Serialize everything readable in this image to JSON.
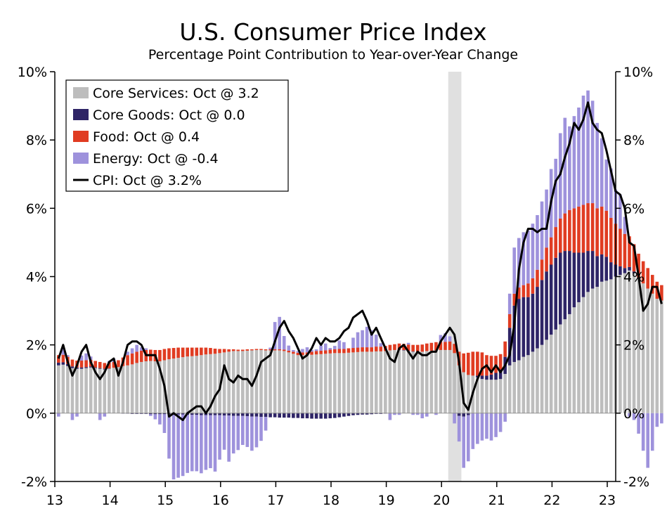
{
  "chart_data": {
    "type": "bar",
    "title": "U.S. Consumer Price Index",
    "subtitle": "Percentage Point Contribution to Year-over-Year Change",
    "start": "2013-01",
    "ylim": [
      -2,
      10
    ],
    "yticks": [
      -2,
      0,
      2,
      4,
      6,
      8,
      10
    ],
    "y_tick_labels": [
      "-2%",
      "0%",
      "2%",
      "4%",
      "6%",
      "8%",
      "10%"
    ],
    "x_tick_labels": [
      "13",
      "14",
      "15",
      "16",
      "17",
      "18",
      "19",
      "20",
      "21",
      "22",
      "23"
    ],
    "recession_shade": {
      "start": "2020-02",
      "end": "2020-04"
    },
    "legend_position": "top-left",
    "colors": {
      "core_services": "#bdbdbd",
      "core_goods": "#2e2466",
      "food": "#e03c22",
      "energy": "#9e92dc",
      "cpi": "#000000",
      "recession": "#e0e0e0"
    },
    "series": [
      {
        "key": "core_services",
        "name": "Core Services: Oct @ 3.2",
        "type": "bar",
        "values": [
          1.4,
          1.42,
          1.38,
          1.32,
          1.3,
          1.3,
          1.32,
          1.34,
          1.32,
          1.3,
          1.28,
          1.3,
          1.33,
          1.35,
          1.38,
          1.4,
          1.43,
          1.47,
          1.5,
          1.52,
          1.53,
          1.52,
          1.52,
          1.55,
          1.58,
          1.6,
          1.62,
          1.64,
          1.66,
          1.67,
          1.68,
          1.7,
          1.72,
          1.73,
          1.74,
          1.76,
          1.78,
          1.8,
          1.82,
          1.82,
          1.82,
          1.83,
          1.84,
          1.85,
          1.85,
          1.84,
          1.84,
          1.84,
          1.84,
          1.82,
          1.78,
          1.74,
          1.7,
          1.7,
          1.7,
          1.71,
          1.72,
          1.73,
          1.74,
          1.75,
          1.76,
          1.76,
          1.76,
          1.77,
          1.78,
          1.79,
          1.8,
          1.8,
          1.8,
          1.81,
          1.81,
          1.82,
          1.84,
          1.85,
          1.85,
          1.84,
          1.82,
          1.8,
          1.8,
          1.8,
          1.82,
          1.83,
          1.84,
          1.85,
          1.85,
          1.85,
          1.76,
          1.4,
          1.2,
          1.12,
          1.1,
          1.05,
          1.0,
          0.98,
          0.98,
          0.98,
          1.0,
          1.15,
          1.4,
          1.5,
          1.55,
          1.65,
          1.7,
          1.8,
          1.9,
          2.0,
          2.15,
          2.3,
          2.45,
          2.6,
          2.75,
          2.9,
          3.1,
          3.25,
          3.4,
          3.55,
          3.65,
          3.7,
          3.85,
          3.88,
          3.92,
          4.0,
          4.05,
          4.1,
          4.18,
          4.1,
          3.95,
          3.8,
          3.65,
          3.5,
          3.35,
          3.3,
          3.2,
          3.2
        ]
      },
      {
        "key": "core_goods",
        "name": "Core Goods: Oct @ 0.0",
        "type": "bar",
        "values": [
          0.08,
          0.07,
          0.06,
          0.05,
          0.04,
          0.04,
          0.03,
          0.03,
          0.02,
          0.02,
          0.02,
          0.01,
          0.0,
          0.0,
          -0.01,
          -0.01,
          -0.02,
          -0.02,
          -0.02,
          -0.02,
          -0.03,
          -0.03,
          -0.03,
          -0.03,
          -0.03,
          -0.04,
          -0.04,
          -0.04,
          -0.05,
          -0.05,
          -0.05,
          -0.06,
          -0.06,
          -0.06,
          -0.06,
          -0.06,
          -0.07,
          -0.07,
          -0.08,
          -0.08,
          -0.08,
          -0.09,
          -0.1,
          -0.1,
          -0.11,
          -0.11,
          -0.12,
          -0.12,
          -0.13,
          -0.13,
          -0.13,
          -0.14,
          -0.14,
          -0.15,
          -0.15,
          -0.16,
          -0.16,
          -0.16,
          -0.16,
          -0.15,
          -0.14,
          -0.12,
          -0.1,
          -0.08,
          -0.06,
          -0.05,
          -0.04,
          -0.04,
          -0.03,
          -0.02,
          -0.02,
          -0.01,
          0.0,
          0.0,
          0.01,
          0.01,
          0.01,
          0.01,
          0.0,
          0.0,
          0.0,
          0.0,
          0.0,
          0.0,
          0.0,
          0.0,
          0.0,
          -0.08,
          -0.1,
          -0.06,
          0.0,
          0.05,
          0.1,
          0.12,
          0.15,
          0.2,
          0.28,
          0.5,
          1.1,
          1.65,
          1.8,
          1.75,
          1.7,
          1.7,
          1.8,
          1.9,
          2.0,
          2.05,
          2.1,
          2.1,
          2.0,
          1.85,
          1.6,
          1.45,
          1.3,
          1.2,
          1.1,
          0.9,
          0.8,
          0.7,
          0.5,
          0.35,
          0.25,
          0.15,
          0.1,
          0.05,
          0.02,
          0.0,
          0.0,
          0.0,
          0.0,
          0.0,
          0.0,
          0.0,
          0.0
        ]
      },
      {
        "key": "food",
        "name": "Food: Oct @ 0.4",
        "type": "bar",
        "values": [
          0.22,
          0.22,
          0.21,
          0.2,
          0.2,
          0.2,
          0.2,
          0.19,
          0.19,
          0.18,
          0.17,
          0.17,
          0.17,
          0.2,
          0.25,
          0.3,
          0.32,
          0.33,
          0.33,
          0.33,
          0.33,
          0.33,
          0.33,
          0.33,
          0.32,
          0.31,
          0.3,
          0.28,
          0.26,
          0.25,
          0.24,
          0.22,
          0.2,
          0.18,
          0.15,
          0.12,
          0.1,
          0.07,
          0.05,
          0.04,
          0.04,
          0.04,
          0.03,
          0.03,
          0.03,
          0.03,
          0.03,
          0.03,
          0.03,
          0.04,
          0.05,
          0.06,
          0.07,
          0.08,
          0.08,
          0.09,
          0.1,
          0.1,
          0.1,
          0.11,
          0.11,
          0.12,
          0.12,
          0.13,
          0.13,
          0.13,
          0.13,
          0.13,
          0.13,
          0.14,
          0.14,
          0.15,
          0.16,
          0.17,
          0.18,
          0.18,
          0.18,
          0.19,
          0.2,
          0.21,
          0.22,
          0.23,
          0.24,
          0.24,
          0.24,
          0.25,
          0.27,
          0.4,
          0.55,
          0.65,
          0.7,
          0.7,
          0.68,
          0.6,
          0.55,
          0.5,
          0.45,
          0.45,
          0.4,
          0.35,
          0.33,
          0.35,
          0.4,
          0.45,
          0.5,
          0.6,
          0.7,
          0.8,
          0.9,
          1.0,
          1.1,
          1.2,
          1.3,
          1.35,
          1.4,
          1.4,
          1.4,
          1.4,
          1.4,
          1.35,
          1.3,
          1.2,
          1.1,
          1.0,
          0.9,
          0.8,
          0.7,
          0.65,
          0.6,
          0.55,
          0.5,
          0.45,
          0.42,
          0.4,
          0.4
        ]
      },
      {
        "key": "energy",
        "name": "Energy: Oct @ -0.4",
        "type": "bar",
        "values": [
          -0.1,
          0.2,
          0.05,
          -0.2,
          -0.1,
          0.15,
          0.2,
          0.1,
          0.0,
          -0.2,
          -0.1,
          0.05,
          0.1,
          0.0,
          0.0,
          0.1,
          0.15,
          0.2,
          0.1,
          0.05,
          -0.05,
          -0.15,
          -0.3,
          -0.55,
          -1.3,
          -1.9,
          -1.85,
          -1.8,
          -1.7,
          -1.65,
          -1.65,
          -1.7,
          -1.6,
          -1.55,
          -1.65,
          -1.3,
          -1.0,
          -1.35,
          -1.1,
          -1.0,
          -0.85,
          -0.9,
          -1.0,
          -0.9,
          -0.7,
          -0.4,
          0.05,
          0.8,
          0.95,
          0.4,
          0.15,
          0.05,
          0.05,
          0.1,
          0.15,
          0.05,
          0.05,
          0.15,
          0.2,
          0.05,
          0.1,
          0.25,
          0.2,
          0.0,
          0.3,
          0.45,
          0.5,
          0.6,
          0.5,
          0.35,
          0.1,
          0.0,
          -0.2,
          -0.05,
          -0.05,
          0.0,
          0.05,
          -0.05,
          -0.05,
          -0.15,
          -0.1,
          0.0,
          -0.05,
          0.2,
          0.25,
          0.15,
          -0.3,
          -0.75,
          -1.5,
          -1.35,
          -1.05,
          -0.9,
          -0.8,
          -0.75,
          -0.8,
          -0.7,
          -0.55,
          -0.25,
          0.6,
          1.35,
          1.45,
          1.55,
          1.55,
          1.6,
          1.6,
          1.7,
          1.7,
          2.0,
          2.0,
          2.5,
          2.8,
          2.45,
          2.7,
          2.9,
          3.2,
          3.3,
          3.0,
          2.5,
          2.0,
          1.5,
          1.45,
          1.0,
          1.0,
          0.5,
          -0.1,
          -0.2,
          -0.6,
          -1.1,
          -1.6,
          -1.1,
          -0.4,
          -0.3,
          -0.4
        ]
      },
      {
        "key": "cpi",
        "name": "CPI: Oct @ 3.2%",
        "type": "line",
        "values": [
          1.6,
          2.0,
          1.5,
          1.1,
          1.4,
          1.8,
          2.0,
          1.5,
          1.2,
          1.0,
          1.2,
          1.5,
          1.6,
          1.1,
          1.5,
          2.0,
          2.1,
          2.1,
          2.0,
          1.7,
          1.7,
          1.7,
          1.3,
          0.8,
          -0.1,
          0.0,
          -0.1,
          -0.2,
          0.0,
          0.1,
          0.2,
          0.2,
          0.0,
          0.2,
          0.5,
          0.7,
          1.4,
          1.0,
          0.9,
          1.1,
          1.0,
          1.0,
          0.8,
          1.1,
          1.5,
          1.6,
          1.7,
          2.1,
          2.5,
          2.7,
          2.4,
          2.2,
          1.9,
          1.6,
          1.7,
          1.9,
          2.2,
          2.0,
          2.2,
          2.1,
          2.1,
          2.2,
          2.4,
          2.5,
          2.8,
          2.9,
          3.0,
          2.7,
          2.3,
          2.5,
          2.2,
          1.9,
          1.6,
          1.5,
          1.9,
          2.0,
          1.8,
          1.6,
          1.8,
          1.7,
          1.7,
          1.8,
          1.8,
          2.1,
          2.3,
          2.5,
          2.3,
          1.5,
          0.3,
          0.1,
          0.6,
          1.0,
          1.3,
          1.4,
          1.2,
          1.4,
          1.2,
          1.4,
          1.7,
          2.6,
          4.2,
          5.0,
          5.4,
          5.4,
          5.3,
          5.4,
          5.4,
          6.2,
          6.8,
          7.0,
          7.5,
          7.9,
          8.5,
          8.3,
          8.6,
          9.1,
          8.5,
          8.3,
          8.2,
          7.7,
          7.1,
          6.5,
          6.4,
          6.0,
          5.0,
          4.9,
          4.0,
          3.0,
          3.2,
          3.7,
          3.7,
          3.2
        ]
      }
    ]
  }
}
